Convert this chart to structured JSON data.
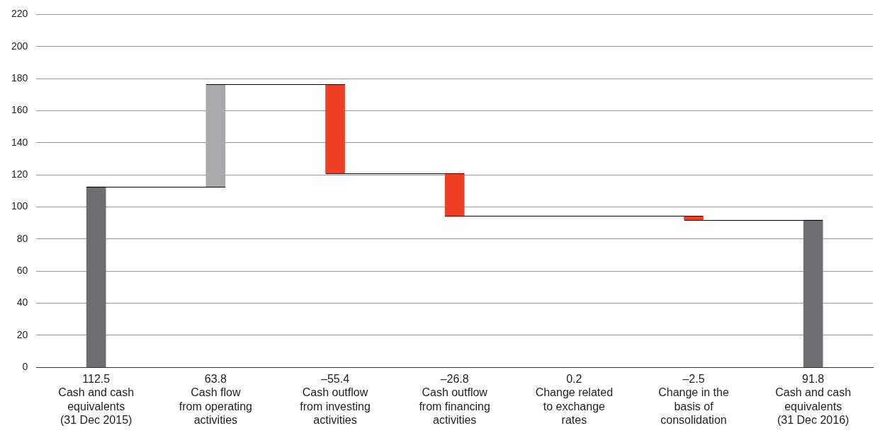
{
  "chart_data": {
    "type": "bar",
    "categories": [
      "Cash and cash\nequivalents\n(31 Dec 2015)",
      "Cash flow\nfrom operating\nactivities",
      "Cash outflow\nfrom investing\nactivities",
      "Cash outflow\nfrom financing\nactivities",
      "Change related\nto exchange\nrates",
      "Change in the\nbasis of\nconsolidation",
      "Cash and cash\nequivalents\n(31 Dec 2016)"
    ],
    "values": [
      112.5,
      63.8,
      -55.4,
      -26.8,
      0.2,
      -2.5,
      91.8
    ],
    "base": [
      0,
      112.5,
      176.3,
      120.9,
      94.1,
      94.3,
      0
    ],
    "value_labels": [
      "112.5",
      "63.8",
      "–55.4",
      "–26.8",
      "0.2",
      "–2.5",
      "91.8"
    ],
    "colors": [
      "#6d6e71",
      "#a7a9ac",
      "#ee3e23",
      "#ee3e23",
      "#ffffff",
      "#ee3e23",
      "#6d6e71"
    ],
    "ylim": [
      0,
      220
    ],
    "yticks": [
      0,
      20,
      40,
      60,
      80,
      100,
      120,
      140,
      160,
      180,
      200,
      220
    ],
    "grid": "y",
    "legend": false
  }
}
